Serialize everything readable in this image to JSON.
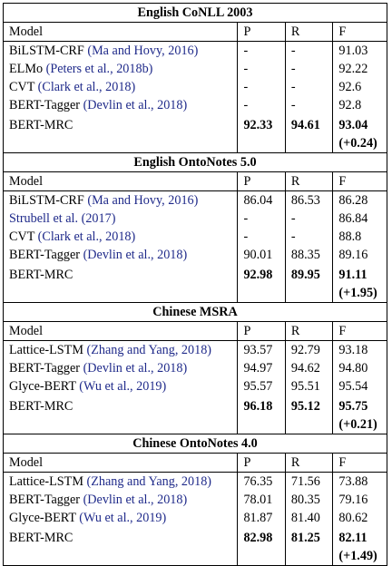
{
  "columns": {
    "model": "Model",
    "p": "P",
    "r": "R",
    "f": "F"
  },
  "sections": [
    {
      "title": "English CoNLL 2003",
      "rows": [
        {
          "name": "BiLSTM-CRF",
          "cite": "(Ma and Hovy, 2016)",
          "p": "-",
          "r": "-",
          "f": "91.03"
        },
        {
          "name": "ELMo",
          "cite": "(Peters et al., 2018b)",
          "p": "-",
          "r": "-",
          "f": "92.22"
        },
        {
          "name": "CVT",
          "cite": "(Clark et al., 2018)",
          "p": "-",
          "r": "-",
          "f": "92.6"
        },
        {
          "name": "BERT-Tagger",
          "cite": "(Devlin et al., 2018)",
          "p": "-",
          "r": "-",
          "f": "92.8"
        }
      ],
      "best": {
        "name": "BERT-MRC",
        "p": "92.33",
        "r": "94.61",
        "f": "93.04",
        "gain": "(+0.24)"
      }
    },
    {
      "title": "English OntoNotes 5.0",
      "rows": [
        {
          "name": "BiLSTM-CRF",
          "cite": "(Ma and Hovy, 2016)",
          "p": "86.04",
          "r": "86.53",
          "f": "86.28"
        },
        {
          "name": "",
          "cite": "Strubell et al. (2017)",
          "p": "-",
          "r": "-",
          "f": "86.84"
        },
        {
          "name": "CVT",
          "cite": "(Clark et al., 2018)",
          "p": "-",
          "r": "-",
          "f": "88.8"
        },
        {
          "name": "BERT-Tagger",
          "cite": "(Devlin et al., 2018)",
          "p": "90.01",
          "r": "88.35",
          "f": "89.16"
        }
      ],
      "best": {
        "name": "BERT-MRC",
        "p": "92.98",
        "r": "89.95",
        "f": "91.11",
        "gain": "(+1.95)"
      }
    },
    {
      "title": "Chinese MSRA",
      "rows": [
        {
          "name": "Lattice-LSTM",
          "cite": "(Zhang and Yang, 2018)",
          "p": "93.57",
          "r": "92.79",
          "f": "93.18"
        },
        {
          "name": "BERT-Tagger",
          "cite": "(Devlin et al., 2018)",
          "p": "94.97",
          "r": "94.62",
          "f": "94.80"
        },
        {
          "name": "Glyce-BERT",
          "cite": "(Wu et al., 2019)",
          "p": "95.57",
          "r": "95.51",
          "f": "95.54"
        }
      ],
      "best": {
        "name": "BERT-MRC",
        "p": "96.18",
        "r": "95.12",
        "f": "95.75",
        "gain": "(+0.21)"
      }
    },
    {
      "title": "Chinese OntoNotes 4.0",
      "rows": [
        {
          "name": "Lattice-LSTM",
          "cite": "(Zhang and Yang, 2018)",
          "p": "76.35",
          "r": "71.56",
          "f": "73.88"
        },
        {
          "name": "BERT-Tagger",
          "cite": "(Devlin et al., 2018)",
          "p": "78.01",
          "r": "80.35",
          "f": "79.16"
        },
        {
          "name": "Glyce-BERT",
          "cite": "(Wu et al., 2019)",
          "p": "81.87",
          "r": "81.40",
          "f": "80.62"
        }
      ],
      "best": {
        "name": "BERT-MRC",
        "p": "82.98",
        "r": "81.25",
        "f": "82.11",
        "gain": "(+1.49)"
      }
    }
  ],
  "colors": {
    "citation": "#1f2a8a",
    "text": "#000000"
  }
}
